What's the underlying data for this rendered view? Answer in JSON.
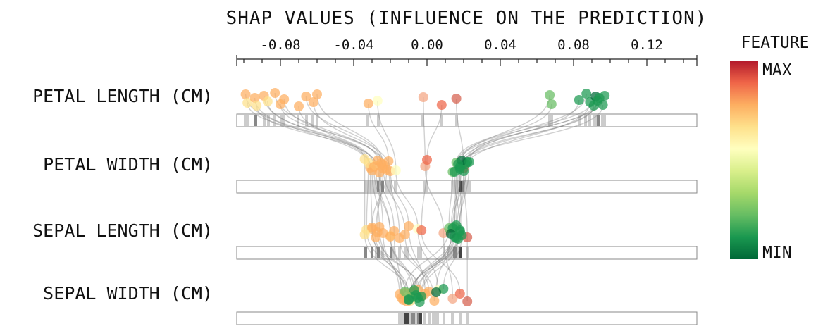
{
  "chart_data": {
    "type": "scatter",
    "title": "SHAP VALUES (INFLUENCE ON THE PREDICTION)",
    "x_axis": {
      "ticks": [
        "-0.08",
        "-0.04",
        "0.00",
        "0.04",
        "0.08",
        "0.12"
      ],
      "tick_values": [
        -0.08,
        -0.04,
        0.0,
        0.04,
        0.08,
        0.12
      ],
      "range": [
        -0.1,
        0.15
      ]
    },
    "features": [
      "PETAL LENGTH (CM)",
      "PETAL WIDTH (CM)",
      "SEPAL LENGTH (CM)",
      "SEPAL WIDTH (CM)"
    ],
    "colorbar": {
      "title": "FEATURE",
      "max_label": "MAX",
      "min_label": "MIN",
      "colors": [
        "#b2182b",
        "#ef6548",
        "#fdae61",
        "#fee08b",
        "#ffffbf",
        "#d9ef8b",
        "#a6d96a",
        "#66bd63",
        "#1a9850",
        "#006837"
      ]
    },
    "samples": [
      {
        "color": "#fdae61",
        "shap": [
          -0.099,
          -0.031,
          -0.03,
          -0.012
        ]
      },
      {
        "color": "#fee08b",
        "shap": [
          -0.098,
          -0.034,
          -0.034,
          -0.009
        ]
      },
      {
        "color": "#fdae61",
        "shap": [
          -0.094,
          -0.03,
          -0.026,
          -0.015
        ]
      },
      {
        "color": "#fee08b",
        "shap": [
          -0.093,
          -0.028,
          -0.02,
          -0.007
        ]
      },
      {
        "color": "#fdae61",
        "shap": [
          -0.089,
          -0.026,
          -0.024,
          -0.013
        ]
      },
      {
        "color": "#fee08b",
        "shap": [
          -0.087,
          -0.032,
          -0.033,
          -0.01
        ]
      },
      {
        "color": "#fdae61",
        "shap": [
          -0.083,
          -0.024,
          -0.028,
          -0.005
        ]
      },
      {
        "color": "#fdae61",
        "shap": [
          -0.08,
          -0.027,
          -0.018,
          -0.014
        ]
      },
      {
        "color": "#fdae61",
        "shap": [
          -0.078,
          -0.022,
          -0.03,
          -0.011
        ]
      },
      {
        "color": "#fdae61",
        "shap": [
          -0.07,
          -0.029,
          -0.02,
          -0.008
        ]
      },
      {
        "color": "#fdae61",
        "shap": [
          -0.066,
          -0.025,
          -0.027,
          -0.003
        ]
      },
      {
        "color": "#fdae61",
        "shap": [
          -0.062,
          -0.02,
          -0.01,
          -0.001
        ]
      },
      {
        "color": "#fdae61",
        "shap": [
          -0.06,
          -0.024,
          -0.012,
          0.004
        ]
      },
      {
        "color": "#fdae61",
        "shap": [
          -0.032,
          -0.021,
          -0.015,
          0.001
        ]
      },
      {
        "color": "#ffffbf",
        "shap": [
          -0.027,
          -0.017,
          -0.005,
          0.006
        ]
      },
      {
        "color": "#f4a582",
        "shap": [
          -0.002,
          -0.001,
          0.009,
          0.014
        ]
      },
      {
        "color": "#ef6548",
        "shap": [
          0.008,
          0.0,
          -0.003,
          0.018
        ]
      },
      {
        "color": "#d6604d",
        "shap": [
          0.016,
          0.02,
          0.022,
          0.022
        ]
      },
      {
        "color": "#66bd63",
        "shap": [
          0.067,
          0.014,
          0.012,
          -0.012
        ]
      },
      {
        "color": "#66bd63",
        "shap": [
          0.068,
          0.016,
          0.015,
          -0.008
        ]
      },
      {
        "color": "#1a9850",
        "shap": [
          0.083,
          0.018,
          0.019,
          0.009
        ]
      },
      {
        "color": "#1a9850",
        "shap": [
          0.087,
          0.021,
          0.018,
          -0.01
        ]
      },
      {
        "color": "#1a9850",
        "shap": [
          0.089,
          0.02,
          0.016,
          -0.006
        ]
      },
      {
        "color": "#1a9850",
        "shap": [
          0.091,
          0.022,
          0.014,
          -0.004
        ]
      },
      {
        "color": "#006837",
        "shap": [
          0.092,
          0.019,
          0.013,
          0.005
        ]
      },
      {
        "color": "#1a9850",
        "shap": [
          0.093,
          0.018,
          0.016,
          -0.005
        ]
      },
      {
        "color": "#1a9850",
        "shap": [
          0.094,
          0.017,
          0.015,
          -0.007
        ]
      },
      {
        "color": "#1a9850",
        "shap": [
          0.096,
          0.015,
          0.018,
          -0.01
        ]
      },
      {
        "color": "#1a9850",
        "shap": [
          0.097,
          0.023,
          0.017,
          -0.003
        ]
      }
    ]
  }
}
